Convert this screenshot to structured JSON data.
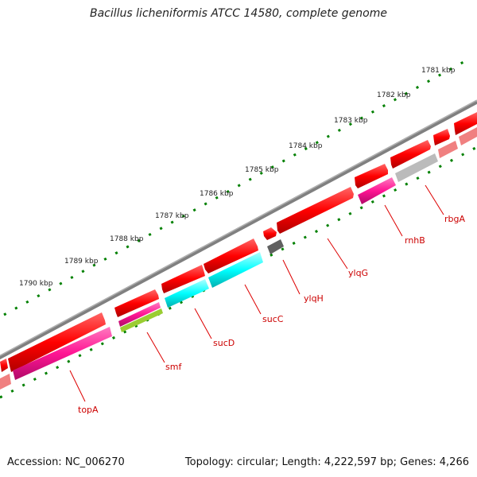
{
  "title": "Bacillus licheniformis ATCC 14580, complete genome",
  "accession": "Accession: NC_006270",
  "topology": "Topology: circular; Length: 4,222,597 bp; Genes: 4,266",
  "kbp_labels": [
    "1781 kbp",
    "1782 kbp",
    "1783 kbp",
    "1784 kbp",
    "1785 kbp",
    "1786 kbp",
    "1787 kbp",
    "1788 kbp",
    "1789 kbp",
    "1790 kbp"
  ],
  "gene_labels": [
    "topA",
    "smf",
    "sucD",
    "sucC",
    "ylqH",
    "ylqG",
    "rnhB",
    "rbgA"
  ],
  "colors": {
    "backbone": "#808080",
    "cds_red": "#ff0000",
    "cds_pink": "#ff1493",
    "cds_salmon": "#f08080",
    "cds_cyan": "#00ffff",
    "cds_lime": "#9acd32",
    "cds_grey": "#bbbbbb",
    "cds_dark": "#606060",
    "tick": "#008000",
    "label_red": "#cc0000"
  }
}
